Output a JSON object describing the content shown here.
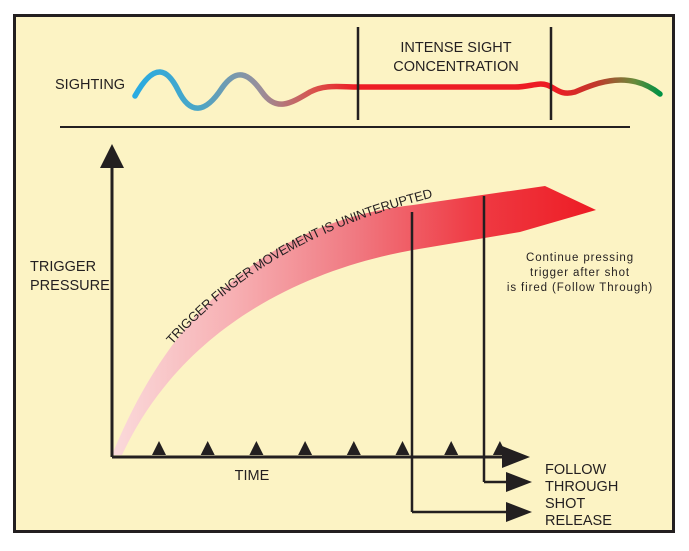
{
  "colors": {
    "background": "#fcf3c4",
    "border": "#231f20",
    "sighting_start": "#29abe2",
    "sighting_mid": "#ed1c24",
    "sighting_end": "#009245",
    "trigger_start": "#f8c4c4",
    "trigger_end": "#ed1c24"
  },
  "sighting": {
    "label": "SIGHTING",
    "intense_line1": "INTENSE SIGHT",
    "intense_line2": "CONCENTRATION"
  },
  "axes": {
    "y_label_line1": "TRIGGER",
    "y_label_line2": "PRESSURE",
    "x_label": "TIME",
    "tick_count": 8
  },
  "curve": {
    "label": "TRIGGER FINGER MOVEMENT IS UNINTERUPTED"
  },
  "follow_note": {
    "line1": "Continue pressing",
    "line2": "trigger after shot",
    "line3": "is fired (Follow Through)"
  },
  "arrows": {
    "follow_line1": "FOLLOW",
    "follow_line2": "THROUGH",
    "shot_line1": "SHOT",
    "shot_line2": "RELEASE"
  }
}
